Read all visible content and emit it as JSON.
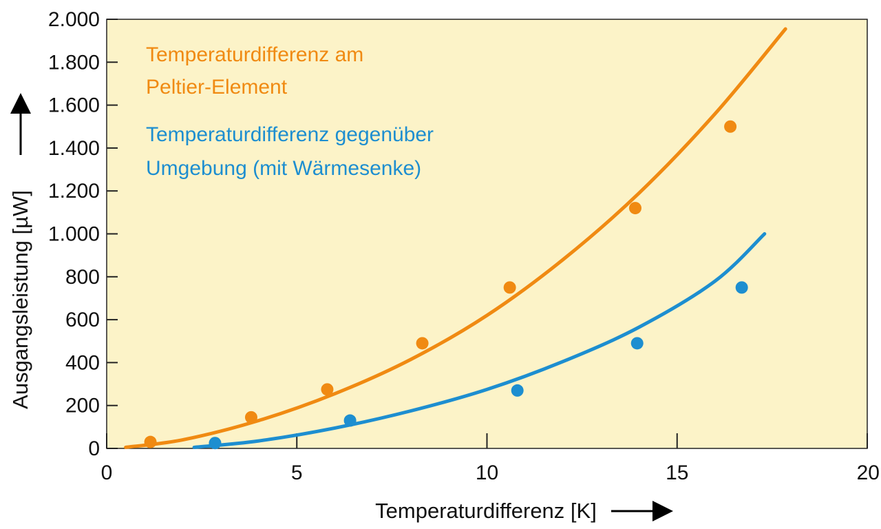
{
  "chart_data": {
    "type": "scatter",
    "xlabel": "Temperaturdifferenz [K]",
    "ylabel": "Ausgangsleistung [µW]",
    "xlim": [
      0,
      20
    ],
    "ylim": [
      0,
      2000
    ],
    "x_ticks": [
      0,
      5,
      10,
      15,
      20
    ],
    "x_tick_labels": [
      "0",
      "5",
      "10",
      "15",
      "20"
    ],
    "y_ticks": [
      0,
      200,
      400,
      600,
      800,
      1000,
      1200,
      1400,
      1600,
      1800,
      2000
    ],
    "y_tick_labels": [
      "0",
      "200",
      "400",
      "600",
      "800",
      "1.000",
      "1.200",
      "1.400",
      "1.600",
      "1.800",
      "2.000"
    ],
    "grid": false,
    "legend_position": "top-left",
    "background_color": "#fcf3c8",
    "series": [
      {
        "name": "Temperaturdifferenz am Peltier-Element",
        "legend_lines": [
          "Temperaturdifferenz am",
          "Peltier-Element"
        ],
        "color": "#f08a12",
        "points": [
          {
            "x": 1.15,
            "y": 30
          },
          {
            "x": 3.8,
            "y": 145
          },
          {
            "x": 5.8,
            "y": 275
          },
          {
            "x": 8.3,
            "y": 490
          },
          {
            "x": 10.6,
            "y": 750
          },
          {
            "x": 13.9,
            "y": 1120
          },
          {
            "x": 16.4,
            "y": 1500
          }
        ],
        "fit": {
          "x": [
            0.5,
            2.0,
            4.0,
            6.0,
            8.0,
            10.0,
            12.0,
            14.0,
            16.0,
            17.85
          ],
          "y": [
            5,
            40,
            130,
            255,
            415,
            620,
            880,
            1190,
            1560,
            1955
          ]
        }
      },
      {
        "name": "Temperaturdifferenz gegenüber Umgebung (mit Wärmesenke)",
        "legend_lines": [
          "Temperaturdifferenz gegenüber",
          "Umgebung (mit Wärmesenke)"
        ],
        "color": "#1d8ed0",
        "points": [
          {
            "x": 2.85,
            "y": 25
          },
          {
            "x": 6.4,
            "y": 130
          },
          {
            "x": 10.8,
            "y": 270
          },
          {
            "x": 13.95,
            "y": 490
          },
          {
            "x": 16.7,
            "y": 750
          }
        ],
        "fit": {
          "x": [
            2.3,
            4.0,
            6.0,
            8.0,
            10.0,
            12.0,
            14.0,
            16.0,
            17.3
          ],
          "y": [
            5,
            35,
            95,
            175,
            275,
            405,
            565,
            780,
            1000
          ]
        }
      }
    ]
  }
}
